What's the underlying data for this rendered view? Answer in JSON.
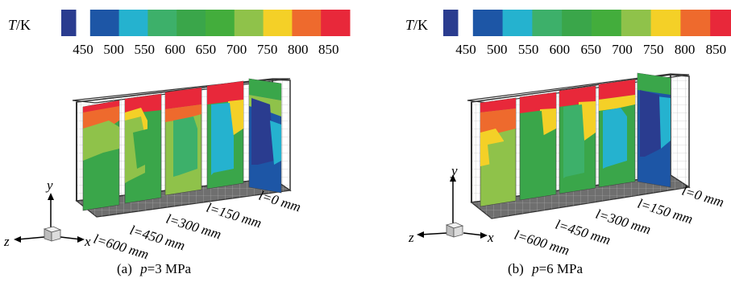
{
  "colorbar": {
    "symbol": "T",
    "unit": "/K",
    "ticks": [
      "450",
      "500",
      "550",
      "600",
      "650",
      "700",
      "750",
      "800",
      "850"
    ],
    "colors": [
      "#2a3c8f",
      "#1d56a6",
      "#25b2cf",
      "#3db06a",
      "#3aa64a",
      "#43ad3c",
      "#8fc24a",
      "#f4d027",
      "#ee6a2d",
      "#e8283a"
    ]
  },
  "axes": {
    "y": "y",
    "z": "z",
    "x": "x"
  },
  "planes": {
    "l0": "l=0 mm",
    "l150": "l=150 mm",
    "l300": "l=300 mm",
    "l450": "l=450 mm",
    "l600": "l=600 mm"
  },
  "panels": [
    {
      "caption_prefix": "(a)",
      "caption_var": "p",
      "caption_value": "=3  MPa"
    },
    {
      "caption_prefix": "(b)",
      "caption_var": "p",
      "caption_value": "=6  MPa"
    }
  ]
}
